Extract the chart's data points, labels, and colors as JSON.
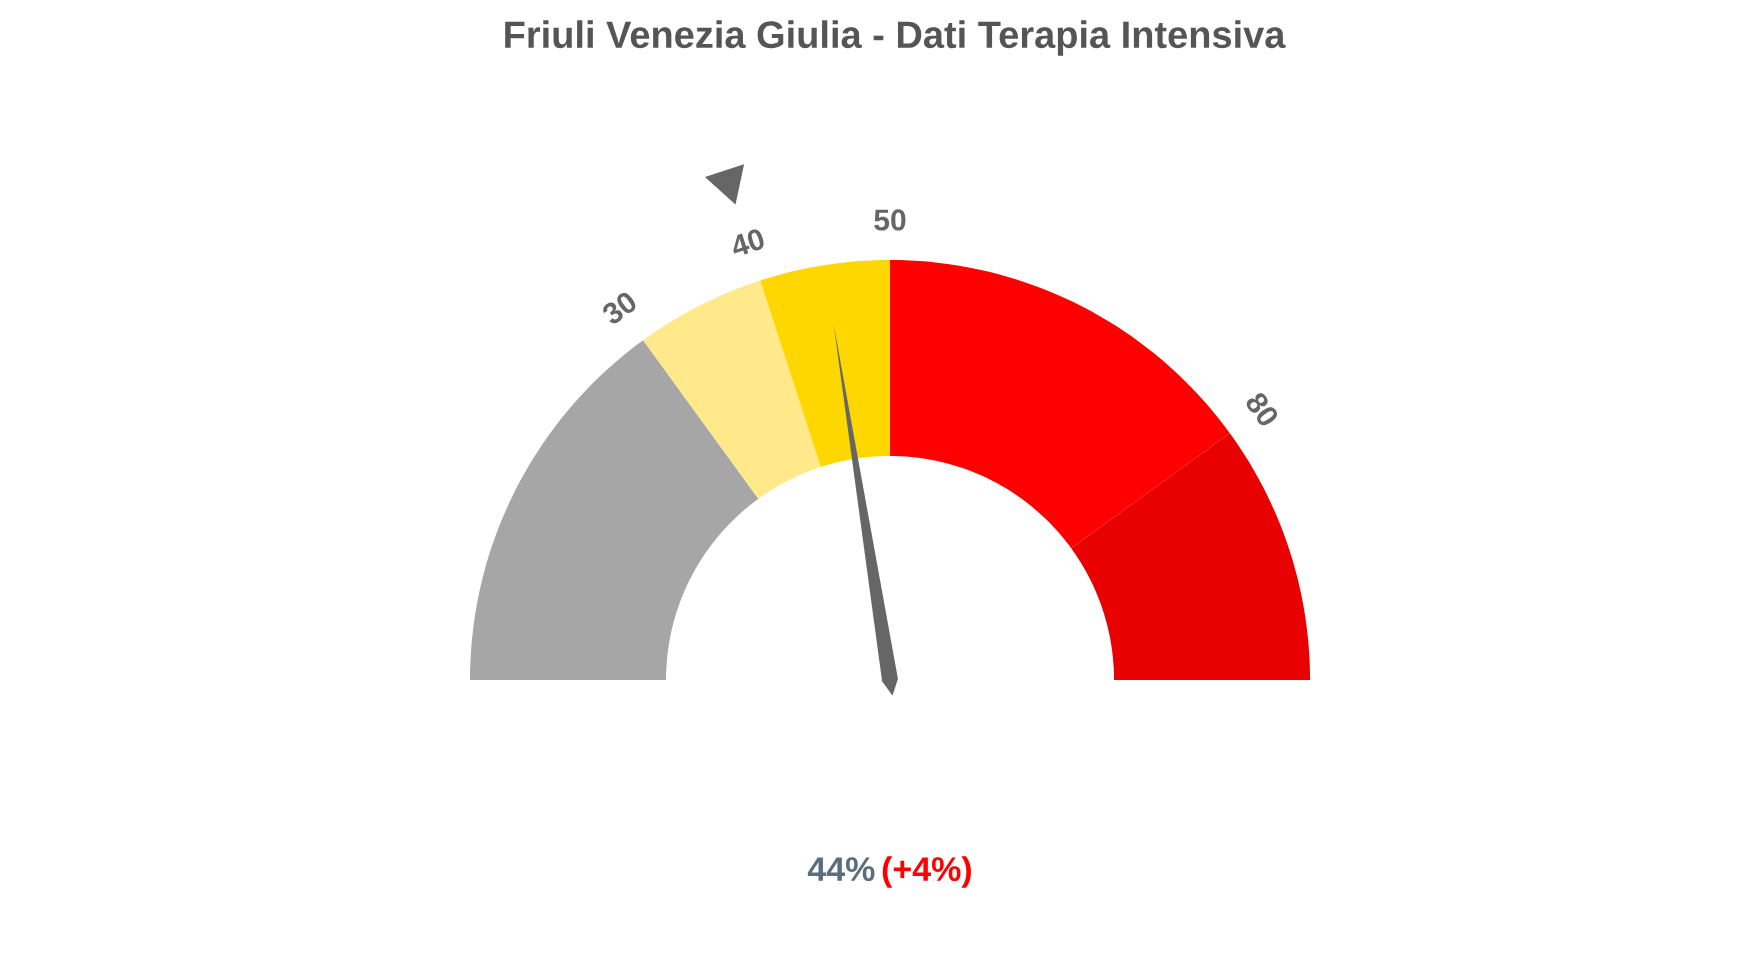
{
  "chart_data": {
    "type": "donut",
    "title": "Friuli Venezia Giulia - Dati Terapia Intensiva",
    "categories": [
      "30",
      "40",
      "50",
      "80",
      null
    ],
    "values": [
      30,
      10,
      10,
      30,
      20
    ],
    "colors": [
      "#a6a6a6",
      "#ffe98a",
      "#ffd700",
      "#ff0000",
      "#e90000"
    ],
    "needle": "50",
    "annotations": [
      "44%",
      "(+4%)"
    ]
  }
}
